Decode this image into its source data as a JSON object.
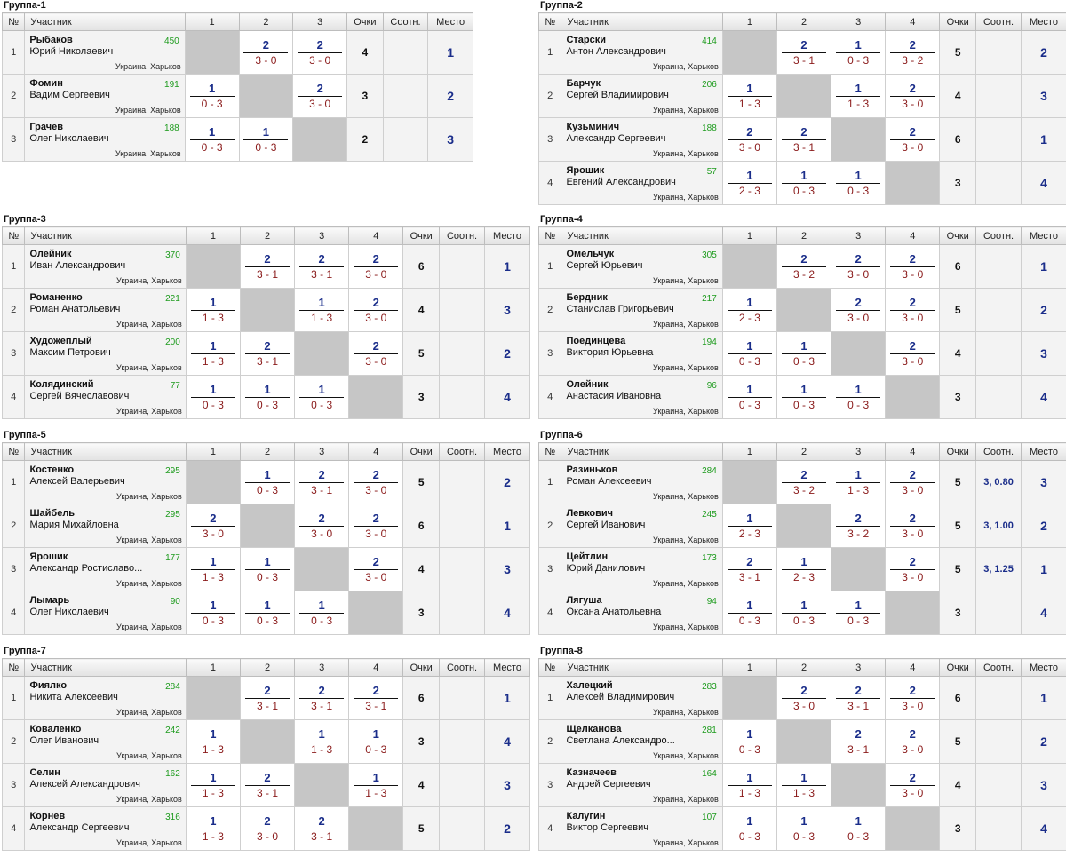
{
  "colors": {
    "points_win": "#1a2d8a",
    "score": "#8a1a1a",
    "rating": "#1d9b1d",
    "self_cell": "#c6c6c6"
  },
  "headers": {
    "no": "№",
    "participant": "Участник",
    "points": "Очки",
    "ratio": "Соотн.",
    "place": "Место"
  },
  "groups": [
    {
      "title": "Группа-1",
      "cols": [
        "1",
        "2",
        "3"
      ],
      "players": [
        {
          "no": "1",
          "last": "Рыбаков",
          "first": "Юрий Николаевич",
          "rating": "450",
          "loc": "Украина, Харьков",
          "results": [
            null,
            {
              "p": "2",
              "s": "3 - 0"
            },
            {
              "p": "2",
              "s": "3 - 0"
            }
          ],
          "points": "4",
          "ratio": "",
          "place": "1"
        },
        {
          "no": "2",
          "last": "Фомин",
          "first": "Вадим Сергеевич",
          "rating": "191",
          "loc": "Украина, Харьков",
          "results": [
            {
              "p": "1",
              "s": "0 - 3"
            },
            null,
            {
              "p": "2",
              "s": "3 - 0"
            }
          ],
          "points": "3",
          "ratio": "",
          "place": "2"
        },
        {
          "no": "3",
          "last": "Грачев",
          "first": "Олег Николаевич",
          "rating": "188",
          "loc": "Украина, Харьков",
          "results": [
            {
              "p": "1",
              "s": "0 - 3"
            },
            {
              "p": "1",
              "s": "0 - 3"
            },
            null
          ],
          "points": "2",
          "ratio": "",
          "place": "3"
        }
      ]
    },
    {
      "title": "Группа-2",
      "cols": [
        "1",
        "2",
        "3",
        "4"
      ],
      "players": [
        {
          "no": "1",
          "last": "Старски",
          "first": "Антон Александрович",
          "rating": "414",
          "loc": "Украина, Харьков",
          "results": [
            null,
            {
              "p": "2",
              "s": "3 - 1"
            },
            {
              "p": "1",
              "s": "0 - 3"
            },
            {
              "p": "2",
              "s": "3 - 2"
            }
          ],
          "points": "5",
          "ratio": "",
          "place": "2"
        },
        {
          "no": "2",
          "last": "Барчук",
          "first": "Сергей Владимирович",
          "rating": "206",
          "loc": "Украина, Харьков",
          "results": [
            {
              "p": "1",
              "s": "1 - 3"
            },
            null,
            {
              "p": "1",
              "s": "1 - 3"
            },
            {
              "p": "2",
              "s": "3 - 0"
            }
          ],
          "points": "4",
          "ratio": "",
          "place": "3"
        },
        {
          "no": "3",
          "last": "Кузьминич",
          "first": "Александр Сергеевич",
          "rating": "188",
          "loc": "Украина, Харьков",
          "results": [
            {
              "p": "2",
              "s": "3 - 0"
            },
            {
              "p": "2",
              "s": "3 - 1"
            },
            null,
            {
              "p": "2",
              "s": "3 - 0"
            }
          ],
          "points": "6",
          "ratio": "",
          "place": "1"
        },
        {
          "no": "4",
          "last": "Ярошик",
          "first": "Евгений Александрович",
          "rating": "57",
          "loc": "Украина, Харьков",
          "results": [
            {
              "p": "1",
              "s": "2 - 3"
            },
            {
              "p": "1",
              "s": "0 - 3"
            },
            {
              "p": "1",
              "s": "0 - 3"
            },
            null
          ],
          "points": "3",
          "ratio": "",
          "place": "4"
        }
      ]
    },
    {
      "title": "Группа-3",
      "cols": [
        "1",
        "2",
        "3",
        "4"
      ],
      "players": [
        {
          "no": "1",
          "last": "Олейник",
          "first": "Иван Александрович",
          "rating": "370",
          "loc": "Украина, Харьков",
          "results": [
            null,
            {
              "p": "2",
              "s": "3 - 1"
            },
            {
              "p": "2",
              "s": "3 - 1"
            },
            {
              "p": "2",
              "s": "3 - 0"
            }
          ],
          "points": "6",
          "ratio": "",
          "place": "1"
        },
        {
          "no": "2",
          "last": "Романенко",
          "first": "Роман Анатольевич",
          "rating": "221",
          "loc": "Украина, Харьков",
          "results": [
            {
              "p": "1",
              "s": "1 - 3"
            },
            null,
            {
              "p": "1",
              "s": "1 - 3"
            },
            {
              "p": "2",
              "s": "3 - 0"
            }
          ],
          "points": "4",
          "ratio": "",
          "place": "3"
        },
        {
          "no": "3",
          "last": "Художеплый",
          "first": "Максим Петрович",
          "rating": "200",
          "loc": "Украина, Харьков",
          "results": [
            {
              "p": "1",
              "s": "1 - 3"
            },
            {
              "p": "2",
              "s": "3 - 1"
            },
            null,
            {
              "p": "2",
              "s": "3 - 0"
            }
          ],
          "points": "5",
          "ratio": "",
          "place": "2"
        },
        {
          "no": "4",
          "last": "Колядинский",
          "first": "Сергей Вячеславович",
          "rating": "77",
          "loc": "Украина, Харьков",
          "results": [
            {
              "p": "1",
              "s": "0 - 3"
            },
            {
              "p": "1",
              "s": "0 - 3"
            },
            {
              "p": "1",
              "s": "0 - 3"
            },
            null
          ],
          "points": "3",
          "ratio": "",
          "place": "4"
        }
      ]
    },
    {
      "title": "Группа-4",
      "cols": [
        "1",
        "2",
        "3",
        "4"
      ],
      "players": [
        {
          "no": "1",
          "last": "Омельчук",
          "first": "Сергей Юрьевич",
          "rating": "305",
          "loc": "Украина, Харьков",
          "results": [
            null,
            {
              "p": "2",
              "s": "3 - 2"
            },
            {
              "p": "2",
              "s": "3 - 0"
            },
            {
              "p": "2",
              "s": "3 - 0"
            }
          ],
          "points": "6",
          "ratio": "",
          "place": "1"
        },
        {
          "no": "2",
          "last": "Бердник",
          "first": "Станислав Григорьевич",
          "rating": "217",
          "loc": "Украина, Харьков",
          "results": [
            {
              "p": "1",
              "s": "2 - 3"
            },
            null,
            {
              "p": "2",
              "s": "3 - 0"
            },
            {
              "p": "2",
              "s": "3 - 0"
            }
          ],
          "points": "5",
          "ratio": "",
          "place": "2"
        },
        {
          "no": "3",
          "last": "Поединцева",
          "first": "Виктория Юрьевна",
          "rating": "194",
          "loc": "Украина, Харьков",
          "results": [
            {
              "p": "1",
              "s": "0 - 3"
            },
            {
              "p": "1",
              "s": "0 - 3"
            },
            null,
            {
              "p": "2",
              "s": "3 - 0"
            }
          ],
          "points": "4",
          "ratio": "",
          "place": "3"
        },
        {
          "no": "4",
          "last": "Олейник",
          "first": "Анастасия Ивановна",
          "rating": "96",
          "loc": "Украина, Харьков",
          "results": [
            {
              "p": "1",
              "s": "0 - 3"
            },
            {
              "p": "1",
              "s": "0 - 3"
            },
            {
              "p": "1",
              "s": "0 - 3"
            },
            null
          ],
          "points": "3",
          "ratio": "",
          "place": "4"
        }
      ]
    },
    {
      "title": "Группа-5",
      "cols": [
        "1",
        "2",
        "3",
        "4"
      ],
      "players": [
        {
          "no": "1",
          "last": "Костенко",
          "first": "Алексей Валерьевич",
          "rating": "295",
          "loc": "Украина, Харьков",
          "results": [
            null,
            {
              "p": "1",
              "s": "0 - 3"
            },
            {
              "p": "2",
              "s": "3 - 1"
            },
            {
              "p": "2",
              "s": "3 - 0"
            }
          ],
          "points": "5",
          "ratio": "",
          "place": "2"
        },
        {
          "no": "2",
          "last": "Шайбель",
          "first": "Мария Михайловна",
          "rating": "295",
          "loc": "Украина, Харьков",
          "results": [
            {
              "p": "2",
              "s": "3 - 0"
            },
            null,
            {
              "p": "2",
              "s": "3 - 0"
            },
            {
              "p": "2",
              "s": "3 - 0"
            }
          ],
          "points": "6",
          "ratio": "",
          "place": "1"
        },
        {
          "no": "3",
          "last": "Ярошик",
          "first": "Александр Ростиславо...",
          "rating": "177",
          "loc": "Украина, Харьков",
          "results": [
            {
              "p": "1",
              "s": "1 - 3"
            },
            {
              "p": "1",
              "s": "0 - 3"
            },
            null,
            {
              "p": "2",
              "s": "3 - 0"
            }
          ],
          "points": "4",
          "ratio": "",
          "place": "3"
        },
        {
          "no": "4",
          "last": "Лымарь",
          "first": "Олег Николаевич",
          "rating": "90",
          "loc": "Украина, Харьков",
          "results": [
            {
              "p": "1",
              "s": "0 - 3"
            },
            {
              "p": "1",
              "s": "0 - 3"
            },
            {
              "p": "1",
              "s": "0 - 3"
            },
            null
          ],
          "points": "3",
          "ratio": "",
          "place": "4"
        }
      ]
    },
    {
      "title": "Группа-6",
      "cols": [
        "1",
        "2",
        "3",
        "4"
      ],
      "players": [
        {
          "no": "1",
          "last": "Разиньков",
          "first": "Роман Алексеевич",
          "rating": "284",
          "loc": "Украина, Харьков",
          "results": [
            null,
            {
              "p": "2",
              "s": "3 - 2"
            },
            {
              "p": "1",
              "s": "1 - 3"
            },
            {
              "p": "2",
              "s": "3 - 0"
            }
          ],
          "points": "5",
          "ratio": "3, 0.80",
          "place": "3"
        },
        {
          "no": "2",
          "last": "Левкович",
          "first": "Сергей Иванович",
          "rating": "245",
          "loc": "Украина, Харьков",
          "results": [
            {
              "p": "1",
              "s": "2 - 3"
            },
            null,
            {
              "p": "2",
              "s": "3 - 2"
            },
            {
              "p": "2",
              "s": "3 - 0"
            }
          ],
          "points": "5",
          "ratio": "3, 1.00",
          "place": "2"
        },
        {
          "no": "3",
          "last": "Цейтлин",
          "first": "Юрий Данилович",
          "rating": "173",
          "loc": "Украина, Харьков",
          "results": [
            {
              "p": "2",
              "s": "3 - 1"
            },
            {
              "p": "1",
              "s": "2 - 3"
            },
            null,
            {
              "p": "2",
              "s": "3 - 0"
            }
          ],
          "points": "5",
          "ratio": "3, 1.25",
          "place": "1"
        },
        {
          "no": "4",
          "last": "Лягуша",
          "first": "Оксана Анатольевна",
          "rating": "94",
          "loc": "Украина, Харьков",
          "results": [
            {
              "p": "1",
              "s": "0 - 3"
            },
            {
              "p": "1",
              "s": "0 - 3"
            },
            {
              "p": "1",
              "s": "0 - 3"
            },
            null
          ],
          "points": "3",
          "ratio": "",
          "place": "4"
        }
      ]
    },
    {
      "title": "Группа-7",
      "cols": [
        "1",
        "2",
        "3",
        "4"
      ],
      "players": [
        {
          "no": "1",
          "last": "Фиялко",
          "first": "Никита Алексеевич",
          "rating": "284",
          "loc": "Украина, Харьков",
          "results": [
            null,
            {
              "p": "2",
              "s": "3 - 1"
            },
            {
              "p": "2",
              "s": "3 - 1"
            },
            {
              "p": "2",
              "s": "3 - 1"
            }
          ],
          "points": "6",
          "ratio": "",
          "place": "1"
        },
        {
          "no": "2",
          "last": "Коваленко",
          "first": "Олег Иванович",
          "rating": "242",
          "loc": "Украина, Харьков",
          "results": [
            {
              "p": "1",
              "s": "1 - 3"
            },
            null,
            {
              "p": "1",
              "s": "1 - 3"
            },
            {
              "p": "1",
              "s": "0 - 3"
            }
          ],
          "points": "3",
          "ratio": "",
          "place": "4"
        },
        {
          "no": "3",
          "last": "Селин",
          "first": "Алексей Александрович",
          "rating": "162",
          "loc": "Украина, Харьков",
          "results": [
            {
              "p": "1",
              "s": "1 - 3"
            },
            {
              "p": "2",
              "s": "3 - 1"
            },
            null,
            {
              "p": "1",
              "s": "1 - 3"
            }
          ],
          "points": "4",
          "ratio": "",
          "place": "3"
        },
        {
          "no": "4",
          "last": "Корнев",
          "first": "Александр Сергеевич",
          "rating": "316",
          "loc": "Украина, Харьков",
          "results": [
            {
              "p": "1",
              "s": "1 - 3"
            },
            {
              "p": "2",
              "s": "3 - 0"
            },
            {
              "p": "2",
              "s": "3 - 1"
            },
            null
          ],
          "points": "5",
          "ratio": "",
          "place": "2"
        }
      ]
    },
    {
      "title": "Группа-8",
      "cols": [
        "1",
        "2",
        "3",
        "4"
      ],
      "players": [
        {
          "no": "1",
          "last": "Халецкий",
          "first": "Алексей Владимирович",
          "rating": "283",
          "loc": "Украина, Харьков",
          "results": [
            null,
            {
              "p": "2",
              "s": "3 - 0"
            },
            {
              "p": "2",
              "s": "3 - 1"
            },
            {
              "p": "2",
              "s": "3 - 0"
            }
          ],
          "points": "6",
          "ratio": "",
          "place": "1"
        },
        {
          "no": "2",
          "last": "Щелканова",
          "first": "Светлана Александро...",
          "rating": "281",
          "loc": "Украина, Харьков",
          "results": [
            {
              "p": "1",
              "s": "0 - 3"
            },
            null,
            {
              "p": "2",
              "s": "3 - 1"
            },
            {
              "p": "2",
              "s": "3 - 0"
            }
          ],
          "points": "5",
          "ratio": "",
          "place": "2"
        },
        {
          "no": "3",
          "last": "Казначеев",
          "first": "Андрей Сергеевич",
          "rating": "164",
          "loc": "Украина, Харьков",
          "results": [
            {
              "p": "1",
              "s": "1 - 3"
            },
            {
              "p": "1",
              "s": "1 - 3"
            },
            null,
            {
              "p": "2",
              "s": "3 - 0"
            }
          ],
          "points": "4",
          "ratio": "",
          "place": "3"
        },
        {
          "no": "4",
          "last": "Калугин",
          "first": "Виктор Сергеевич",
          "rating": "107",
          "loc": "Украина, Харьков",
          "results": [
            {
              "p": "1",
              "s": "0 - 3"
            },
            {
              "p": "1",
              "s": "0 - 3"
            },
            {
              "p": "1",
              "s": "0 - 3"
            },
            null
          ],
          "points": "3",
          "ratio": "",
          "place": "4"
        }
      ]
    }
  ]
}
